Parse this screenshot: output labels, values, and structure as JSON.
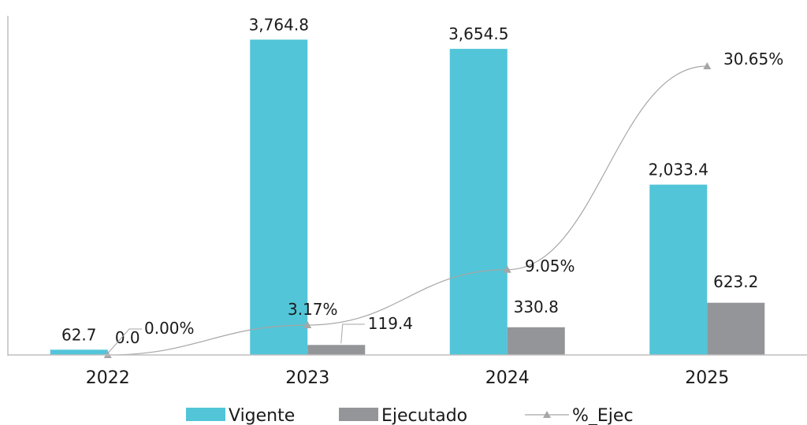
{
  "chart_data": {
    "type": "bar",
    "categories": [
      "2022",
      "2023",
      "2024",
      "2025"
    ],
    "series": [
      {
        "name": "Vigente",
        "type": "bar",
        "color": "#52C5D8",
        "values": [
          62.7,
          3764.8,
          3654.5,
          2033.4
        ],
        "labels": [
          "62.7",
          "3,764.8",
          "3,654.5",
          "2,033.4"
        ]
      },
      {
        "name": "Ejecutado",
        "type": "bar",
        "color": "#939598",
        "values": [
          0.0,
          119.4,
          330.8,
          623.2
        ],
        "labels": [
          "0.0",
          "119.4",
          "330.8",
          "623.2"
        ]
      },
      {
        "name": "%_Ejec",
        "type": "line",
        "color": "#A6A6A6",
        "marker": "triangle",
        "values": [
          0.0,
          3.17,
          9.05,
          30.65
        ],
        "labels": [
          "0.00%",
          "3.17%",
          "9.05%",
          "30.65%"
        ]
      }
    ],
    "ylim": [
      0,
      4050
    ],
    "ylim_secondary": [
      0,
      36
    ],
    "legend_position": "bottom",
    "grid": false
  }
}
